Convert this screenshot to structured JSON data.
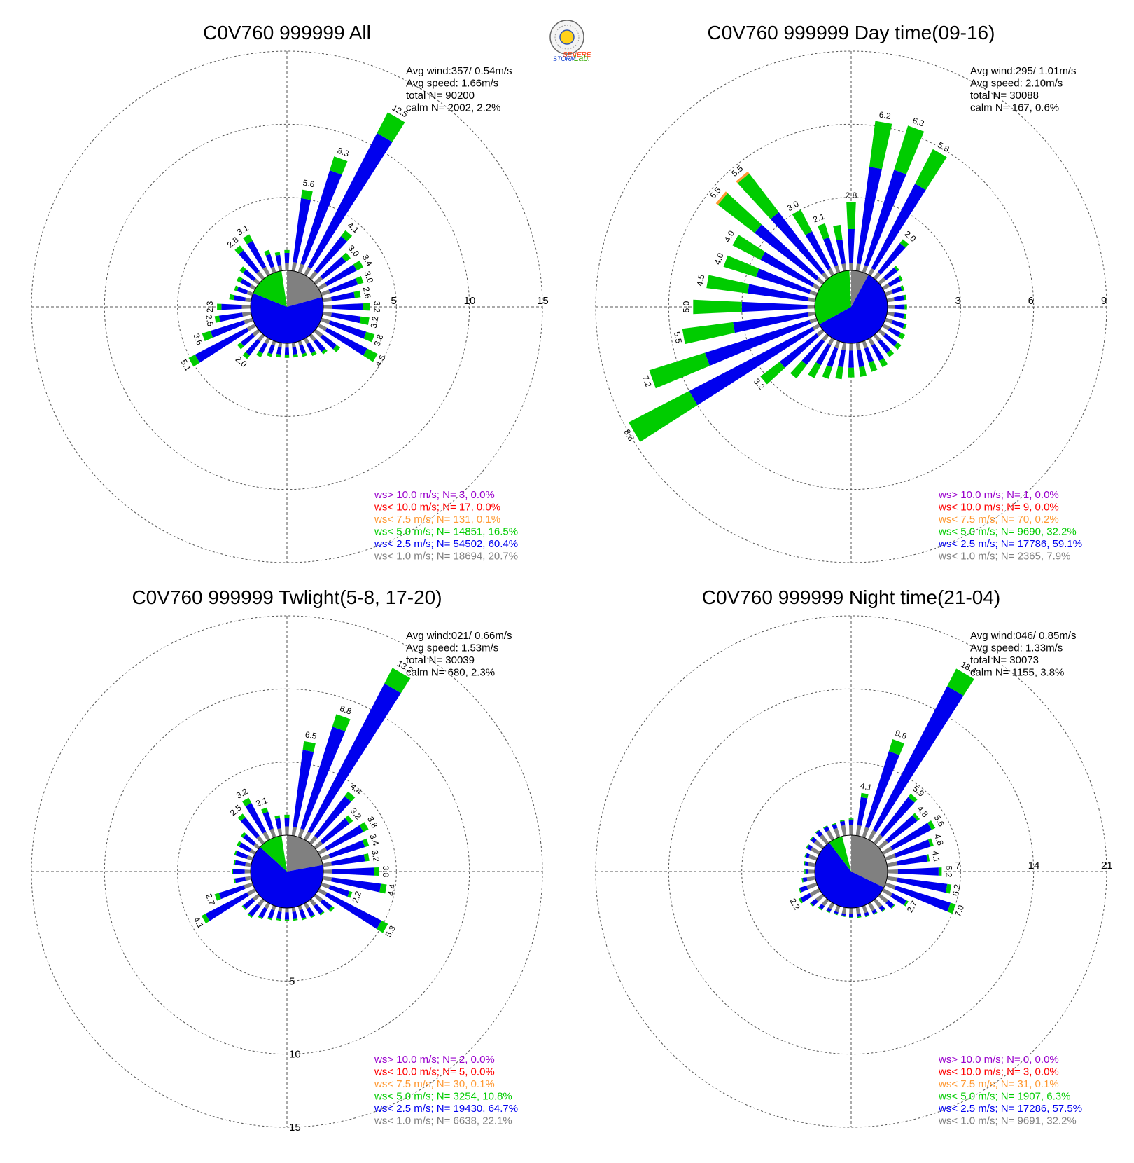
{
  "logo": {
    "text_line1": "SEVERE",
    "text_line2": "STORM",
    "text_line3": "Lab."
  },
  "colors": {
    "gt10": "#9900cc",
    "lt10": "#ff0000",
    "lt7_5": "#ff9933",
    "lt5": "#00cc00",
    "lt2_5": "#0000ee",
    "lt1": "#808080"
  },
  "chart_data": [
    {
      "type": "wind-rose",
      "title": "C0V760 999999 All",
      "info": [
        "Avg wind:357/ 0.54m/s",
        "Avg speed: 1.66m/s",
        "total N=      90200",
        "calm N=   2002,   2.2%"
      ],
      "rings": [
        5,
        10,
        15
      ],
      "ring_labels": [
        "5",
        "10",
        "15"
      ],
      "ring_label_axis": "east",
      "legend": [
        "ws> 10.0 m/s; N=     3,  0.0%",
        "ws< 10.0 m/s; N=    17,  0.0%",
        "ws<  7.5 m/s; N=   131,  0.1%",
        "ws<  5.0 m/s; N= 14851, 16.5%",
        "ws<  2.5 m/s; N= 54502, 60.4%",
        "ws<  1.0 m/s; N= 18694, 20.7%"
      ],
      "pie_percent": {
        "lt1": 20.7,
        "lt2_5": 60.4,
        "lt5": 16.5
      },
      "directions_deg": [
        0,
        10,
        20,
        30,
        40,
        50,
        60,
        70,
        80,
        90,
        100,
        110,
        120,
        130,
        140,
        150,
        160,
        170,
        180,
        190,
        200,
        210,
        220,
        230,
        240,
        250,
        260,
        270,
        280,
        290,
        300,
        310,
        320,
        330,
        340,
        350
      ],
      "totals": [
        1.4,
        5.6,
        8.3,
        12.5,
        4.1,
        3.0,
        3.4,
        3.0,
        2.6,
        3.2,
        3.2,
        3.8,
        4.5,
        2.1,
        1.6,
        1.3,
        1.1,
        1.0,
        1.0,
        1.0,
        1.1,
        1.4,
        2.0,
        1.8,
        5.1,
        3.6,
        2.5,
        2.3,
        1.5,
        1.3,
        1.4,
        1.6,
        2.8,
        3.1,
        1.6,
        1.3
      ],
      "total_labels": [
        "",
        "5.6",
        "8.3",
        "12.5",
        "4.1",
        "3.0",
        "3.4",
        "3.0",
        "2.6",
        "3.2",
        "3.2",
        "3.8",
        "4.5",
        "",
        "",
        "",
        "",
        "",
        "",
        "",
        "",
        "",
        "2.0",
        "",
        "5.1",
        "3.6",
        "2.5",
        "2.3",
        "",
        "",
        "",
        "",
        "2.8",
        "3.1",
        "",
        ""
      ],
      "lt1": [
        0.5,
        0.6,
        0.6,
        0.6,
        0.6,
        0.6,
        0.6,
        0.6,
        0.6,
        0.6,
        0.6,
        0.6,
        0.6,
        0.6,
        0.5,
        0.4,
        0.3,
        0.3,
        0.3,
        0.3,
        0.3,
        0.4,
        0.5,
        0.5,
        0.6,
        0.6,
        0.6,
        0.6,
        0.4,
        0.4,
        0.4,
        0.4,
        0.6,
        0.6,
        0.4,
        0.4
      ],
      "lt2_5": [
        0.7,
        4.4,
        6.7,
        10.3,
        3.0,
        2.0,
        2.3,
        2.0,
        1.6,
        2.1,
        2.0,
        2.6,
        3.1,
        1.2,
        0.9,
        0.7,
        0.6,
        0.5,
        0.5,
        0.5,
        0.6,
        0.7,
        1.2,
        1.0,
        4.0,
        2.4,
        1.6,
        1.4,
        0.8,
        0.7,
        0.7,
        0.9,
        1.8,
        2.0,
        0.9,
        0.7
      ],
      "lt5": [
        0.2,
        0.6,
        1.0,
        1.6,
        0.5,
        0.4,
        0.5,
        0.4,
        0.4,
        0.5,
        0.6,
        0.6,
        0.8,
        0.3,
        0.2,
        0.2,
        0.2,
        0.2,
        0.2,
        0.2,
        0.2,
        0.3,
        0.3,
        0.3,
        0.5,
        0.6,
        0.3,
        0.3,
        0.3,
        0.2,
        0.3,
        0.3,
        0.4,
        0.5,
        0.3,
        0.2
      ],
      "lt7_5": [
        0,
        0,
        0,
        0,
        0,
        0,
        0,
        0,
        0,
        0,
        0,
        0,
        0,
        0,
        0,
        0,
        0,
        0,
        0,
        0,
        0,
        0,
        0,
        0,
        0,
        0,
        0,
        0,
        0,
        0,
        0,
        0,
        0,
        0,
        0,
        0
      ]
    },
    {
      "type": "wind-rose",
      "title": "C0V760 999999 Day time(09-16)",
      "info": [
        "Avg wind:295/ 1.01m/s",
        "Avg speed: 2.10m/s",
        "total N=      30088",
        "calm N=    167,   0.6%"
      ],
      "rings": [
        3,
        6,
        9
      ],
      "ring_labels": [
        "3",
        "6",
        "9"
      ],
      "ring_label_axis": "east",
      "legend": [
        "ws> 10.0 m/s; N=     1,  0.0%",
        "ws< 10.0 m/s; N=     9,  0.0%",
        "ws<  7.5 m/s; N=    70,  0.2%",
        "ws<  5.0 m/s; N=  9690, 32.2%",
        "ws<  2.5 m/s; N= 17786, 59.1%",
        "ws<  1.0 m/s; N=  2365,  7.9%"
      ],
      "pie_percent": {
        "lt1": 7.9,
        "lt2_5": 59.1,
        "lt5": 32.2
      },
      "directions_deg": [
        0,
        10,
        20,
        30,
        40,
        50,
        60,
        70,
        80,
        90,
        100,
        110,
        120,
        130,
        140,
        150,
        160,
        170,
        180,
        190,
        200,
        210,
        220,
        230,
        240,
        250,
        260,
        270,
        280,
        290,
        300,
        310,
        320,
        330,
        340,
        350
      ],
      "totals": [
        2.8,
        6.2,
        6.3,
        5.8,
        2.0,
        1.0,
        0.9,
        0.8,
        0.8,
        0.8,
        0.8,
        0.9,
        1.0,
        1.1,
        1.1,
        1.3,
        1.3,
        1.4,
        1.4,
        1.5,
        1.6,
        1.8,
        2.2,
        3.2,
        8.8,
        7.2,
        5.5,
        5.0,
        4.5,
        4.0,
        4.0,
        5.5,
        5.5,
        3.0,
        2.1,
        1.9
      ],
      "total_labels": [
        "2.8",
        "6.2",
        "6.3",
        "5.8",
        "2.0",
        "",
        "",
        "",
        "",
        "",
        "",
        "",
        "",
        "",
        "",
        "",
        "",
        "",
        "",
        "",
        "",
        "",
        "",
        "3.2",
        "8.8",
        "7.2",
        "5.5",
        "5.0",
        "4.5",
        "4.0",
        "4.0",
        "5.5",
        "5.5",
        "3.0",
        "2.1",
        ""
      ],
      "lt1": [
        0.3,
        0.3,
        0.3,
        0.3,
        0.3,
        0.3,
        0.3,
        0.3,
        0.3,
        0.3,
        0.3,
        0.3,
        0.3,
        0.3,
        0.3,
        0.3,
        0.3,
        0.3,
        0.3,
        0.3,
        0.3,
        0.3,
        0.3,
        0.3,
        0.3,
        0.3,
        0.3,
        0.3,
        0.3,
        0.3,
        0.3,
        0.3,
        0.3,
        0.3,
        0.3,
        0.3
      ],
      "lt2_5": [
        1.4,
        4.0,
        4.1,
        3.9,
        1.5,
        0.6,
        0.5,
        0.4,
        0.4,
        0.4,
        0.4,
        0.5,
        0.5,
        0.6,
        0.6,
        0.7,
        0.6,
        0.7,
        0.7,
        0.7,
        0.8,
        0.9,
        1.2,
        1.9,
        5.7,
        4.5,
        3.1,
        2.7,
        2.5,
        2.3,
        2.4,
        3.2,
        3.1,
        1.7,
        1.2,
        1.0
      ],
      "lt5": [
        1.1,
        1.9,
        1.9,
        1.6,
        0.2,
        0.1,
        0.1,
        0.1,
        0.1,
        0.1,
        0.1,
        0.1,
        0.2,
        0.2,
        0.2,
        0.3,
        0.4,
        0.4,
        0.4,
        0.5,
        0.5,
        0.6,
        0.7,
        1.0,
        2.8,
        2.4,
        2.1,
        2.0,
        1.7,
        1.4,
        1.3,
        1.9,
        2.0,
        1.0,
        0.6,
        0.6
      ],
      "lt7_5": [
        0,
        0,
        0,
        0,
        0,
        0,
        0,
        0,
        0,
        0,
        0,
        0,
        0,
        0,
        0,
        0,
        0,
        0,
        0,
        0,
        0,
        0,
        0,
        0,
        0,
        0,
        0,
        0,
        0,
        0,
        0,
        0.1,
        0.1,
        0,
        0,
        0
      ]
    },
    {
      "type": "wind-rose",
      "title": "C0V760 999999 Twlight(5-8, 17-20)",
      "info": [
        "Avg wind:021/ 0.66m/s",
        "Avg speed: 1.53m/s",
        "total N=      30039",
        "calm N=    680,   2.3%"
      ],
      "rings": [
        5,
        10,
        15
      ],
      "ring_labels": [
        "5",
        "10",
        "15"
      ],
      "ring_label_axis": "south",
      "legend": [
        "ws> 10.0 m/s; N=     2,  0.0%",
        "ws< 10.0 m/s; N=     5,  0.0%",
        "ws<  7.5 m/s; N=    30,  0.1%",
        "ws<  5.0 m/s; N=  3254, 10.8%",
        "ws<  2.5 m/s; N= 19430, 64.7%",
        "ws<  1.0 m/s; N=  6638, 22.1%"
      ],
      "pie_percent": {
        "lt1": 22.1,
        "lt2_5": 64.7,
        "lt5": 10.8
      },
      "directions_deg": [
        0,
        10,
        20,
        30,
        40,
        50,
        60,
        70,
        80,
        90,
        100,
        110,
        120,
        130,
        140,
        150,
        160,
        170,
        180,
        190,
        200,
        210,
        220,
        230,
        240,
        250,
        260,
        270,
        280,
        290,
        300,
        310,
        320,
        330,
        340,
        350
      ],
      "totals": [
        1.4,
        6.5,
        8.8,
        13.2,
        4.4,
        3.2,
        3.8,
        3.4,
        3.2,
        3.8,
        4.4,
        2.2,
        5.3,
        1.6,
        1.3,
        1.1,
        1.0,
        0.9,
        0.9,
        0.9,
        1.0,
        1.2,
        1.5,
        1.4,
        4.1,
        2.7,
        1.2,
        1.3,
        1.2,
        1.3,
        1.4,
        1.5,
        2.5,
        3.2,
        2.1,
        1.4
      ],
      "total_labels": [
        "",
        "6.5",
        "8.8",
        "13.2",
        "4.4",
        "3.2",
        "3.8",
        "3.4",
        "3.2",
        "3.8",
        "4.4",
        "2.2",
        "5.3",
        "",
        "",
        "",
        "",
        "",
        "",
        "",
        "",
        "",
        "",
        "",
        "4.1",
        "2.7",
        "",
        "",
        "",
        "",
        "",
        "",
        "2.5",
        "3.2",
        "2.1",
        ""
      ],
      "lt1": [
        0.6,
        0.6,
        0.6,
        0.6,
        0.6,
        0.6,
        0.6,
        0.6,
        0.6,
        0.6,
        0.6,
        0.6,
        0.6,
        0.6,
        0.5,
        0.4,
        0.3,
        0.3,
        0.3,
        0.3,
        0.3,
        0.4,
        0.5,
        0.5,
        0.6,
        0.6,
        0.4,
        0.4,
        0.4,
        0.4,
        0.4,
        0.4,
        0.6,
        0.6,
        0.6,
        0.5
      ],
      "lt2_5": [
        0.6,
        5.3,
        7.3,
        11.4,
        3.4,
        2.3,
        2.8,
        2.5,
        2.3,
        2.9,
        3.4,
        1.4,
        4.2,
        0.8,
        0.7,
        0.6,
        0.6,
        0.5,
        0.5,
        0.5,
        0.6,
        0.7,
        0.9,
        0.8,
        3.2,
        1.8,
        0.7,
        0.8,
        0.7,
        0.8,
        0.8,
        0.9,
        1.6,
        2.2,
        1.2,
        0.7
      ],
      "lt5": [
        0.2,
        0.6,
        0.9,
        1.2,
        0.4,
        0.3,
        0.4,
        0.3,
        0.3,
        0.3,
        0.4,
        0.2,
        0.5,
        0.2,
        0.1,
        0.1,
        0.1,
        0.1,
        0.1,
        0.1,
        0.1,
        0.1,
        0.1,
        0.1,
        0.3,
        0.3,
        0.1,
        0.1,
        0.1,
        0.1,
        0.2,
        0.2,
        0.3,
        0.4,
        0.3,
        0.2
      ],
      "lt7_5": [
        0,
        0,
        0,
        0,
        0,
        0,
        0,
        0,
        0,
        0,
        0,
        0,
        0,
        0,
        0,
        0,
        0,
        0,
        0,
        0,
        0,
        0,
        0,
        0,
        0,
        0,
        0,
        0,
        0,
        0,
        0,
        0,
        0,
        0,
        0,
        0
      ]
    },
    {
      "type": "wind-rose",
      "title": "C0V760 999999 Night time(21-04)",
      "info": [
        "Avg wind:046/ 0.85m/s",
        "Avg speed: 1.33m/s",
        "total N=      30073",
        "calm N=   1155,   3.8%"
      ],
      "rings": [
        7,
        14,
        21
      ],
      "ring_labels": [
        "7",
        "14",
        "21"
      ],
      "ring_label_axis": "east",
      "legend": [
        "ws> 10.0 m/s; N=     0,  0.0%",
        "ws< 10.0 m/s; N=     3,  0.0%",
        "ws<  7.5 m/s; N=    31,  0.1%",
        "ws<  5.0 m/s; N=  1907,  6.3%",
        "ws<  2.5 m/s; N= 17286, 57.5%",
        "ws<  1.0 m/s; N=  9691, 32.2%"
      ],
      "pie_percent": {
        "lt1": 32.2,
        "lt2_5": 57.5,
        "lt5": 6.3
      },
      "directions_deg": [
        0,
        10,
        20,
        30,
        40,
        50,
        60,
        70,
        80,
        90,
        100,
        110,
        120,
        130,
        140,
        150,
        160,
        170,
        180,
        190,
        200,
        210,
        220,
        230,
        240,
        250,
        260,
        270,
        280,
        290,
        300,
        310,
        320,
        330,
        340,
        350
      ],
      "totals": [
        1.6,
        4.1,
        9.8,
        18.4,
        5.9,
        4.8,
        5.6,
        4.8,
        4.1,
        5.2,
        6.2,
        7.0,
        2.7,
        1.8,
        1.4,
        1.2,
        1.1,
        1.0,
        1.0,
        0.9,
        0.9,
        1.0,
        1.2,
        1.5,
        2.2,
        1.8,
        1.3,
        1.0,
        1.1,
        1.2,
        1.4,
        1.5,
        1.6,
        1.5,
        1.4,
        1.5
      ],
      "total_labels": [
        "",
        "4.1",
        "9.8",
        "18.4",
        "5.9",
        "4.8",
        "5.6",
        "4.8",
        "4.1",
        "5.2",
        "6.2",
        "7.0",
        "2.7",
        "",
        "",
        "",
        "",
        "",
        "",
        "",
        "",
        "",
        "",
        "",
        "2.2",
        "",
        "",
        "",
        "",
        "",
        "",
        "",
        "",
        "",
        "",
        ""
      ],
      "lt1": [
        1.0,
        1.0,
        1.0,
        1.0,
        1.0,
        1.0,
        1.0,
        1.0,
        1.0,
        1.0,
        1.0,
        1.0,
        1.0,
        1.0,
        0.9,
        0.8,
        0.7,
        0.6,
        0.6,
        0.6,
        0.6,
        0.6,
        0.7,
        0.8,
        1.0,
        1.0,
        0.8,
        0.6,
        0.7,
        0.8,
        0.9,
        1.0,
        1.0,
        1.0,
        0.9,
        1.0
      ],
      "lt2_5": [
        0.5,
        2.7,
        7.6,
        15.5,
        4.5,
        3.5,
        4.2,
        3.5,
        2.9,
        3.9,
        4.8,
        5.5,
        1.5,
        0.7,
        0.4,
        0.3,
        0.3,
        0.3,
        0.3,
        0.2,
        0.2,
        0.3,
        0.4,
        0.6,
        1.0,
        0.7,
        0.4,
        0.3,
        0.3,
        0.3,
        0.4,
        0.4,
        0.5,
        0.4,
        0.4,
        0.4
      ],
      "lt5": [
        0.1,
        0.4,
        1.2,
        1.9,
        0.4,
        0.3,
        0.4,
        0.3,
        0.2,
        0.3,
        0.4,
        0.5,
        0.2,
        0.1,
        0.1,
        0.1,
        0.1,
        0.1,
        0.1,
        0.1,
        0.1,
        0.1,
        0.1,
        0.1,
        0.2,
        0.1,
        0.1,
        0.1,
        0.1,
        0.1,
        0.1,
        0.1,
        0.1,
        0.1,
        0.1,
        0.1
      ],
      "lt7_5": [
        0,
        0,
        0,
        0,
        0,
        0,
        0,
        0,
        0,
        0,
        0,
        0,
        0,
        0,
        0,
        0,
        0,
        0,
        0,
        0,
        0,
        0,
        0,
        0,
        0,
        0,
        0,
        0,
        0,
        0,
        0,
        0,
        0,
        0,
        0,
        0
      ]
    }
  ]
}
